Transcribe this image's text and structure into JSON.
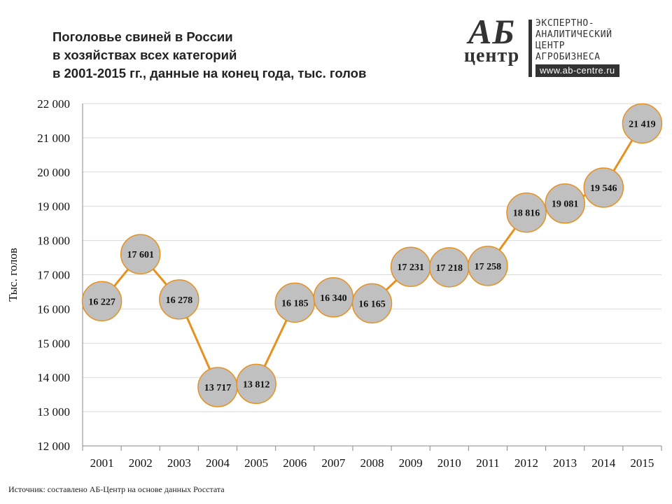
{
  "title_lines": [
    "Поголовье свиней в России",
    "в хозяйствах всех категорий",
    "в 2001-2015 гг., данные на конец года, тыс. голов"
  ],
  "logo": {
    "mark_top": "АБ",
    "mark_bottom": "центр",
    "text_lines": [
      "ЭКСПЕРТНО-",
      "АНАЛИТИЧЕСКИЙ",
      "ЦЕНТР",
      "АГРОБИЗНЕСА"
    ],
    "url": "www.ab-centre.ru"
  },
  "source": "Источник: составлено АБ-Центр на основе данных Росстата",
  "colors": {
    "line": "#E8901E",
    "marker_fill": "#C0C0C0",
    "marker_stroke": "#E8901E",
    "grid": "#D9D9D9",
    "axis": "#888888",
    "text": "#111111"
  },
  "chart_data": {
    "type": "line",
    "title": "Поголовье свиней в России в хозяйствах всех категорий в 2001-2015 гг., данные на конец года, тыс. голов",
    "xlabel": "",
    "ylabel": "Тыс. голов",
    "categories": [
      "2001",
      "2002",
      "2003",
      "2004",
      "2005",
      "2006",
      "2007",
      "2008",
      "2009",
      "2010",
      "2011",
      "2012",
      "2013",
      "2014",
      "2015"
    ],
    "values": [
      16227,
      17601,
      16278,
      13717,
      13812,
      16185,
      16340,
      16165,
      17231,
      17218,
      17258,
      18816,
      19081,
      19546,
      21419
    ],
    "data_labels": [
      "16 227",
      "17 601",
      "16 278",
      "13 717",
      "13 812",
      "16 185",
      "16 340",
      "16 165",
      "17 231",
      "17 218",
      "17 258",
      "18 816",
      "19 081",
      "19 546",
      "21 419"
    ],
    "ylim": [
      12000,
      22000
    ],
    "yticks": [
      12000,
      13000,
      14000,
      15000,
      16000,
      17000,
      18000,
      19000,
      20000,
      21000,
      22000
    ],
    "ytick_labels": [
      "12 000",
      "13 000",
      "14 000",
      "15 000",
      "16 000",
      "17 000",
      "18 000",
      "19 000",
      "20 000",
      "21 000",
      "22 000"
    ],
    "grid": true,
    "legend": "none"
  }
}
